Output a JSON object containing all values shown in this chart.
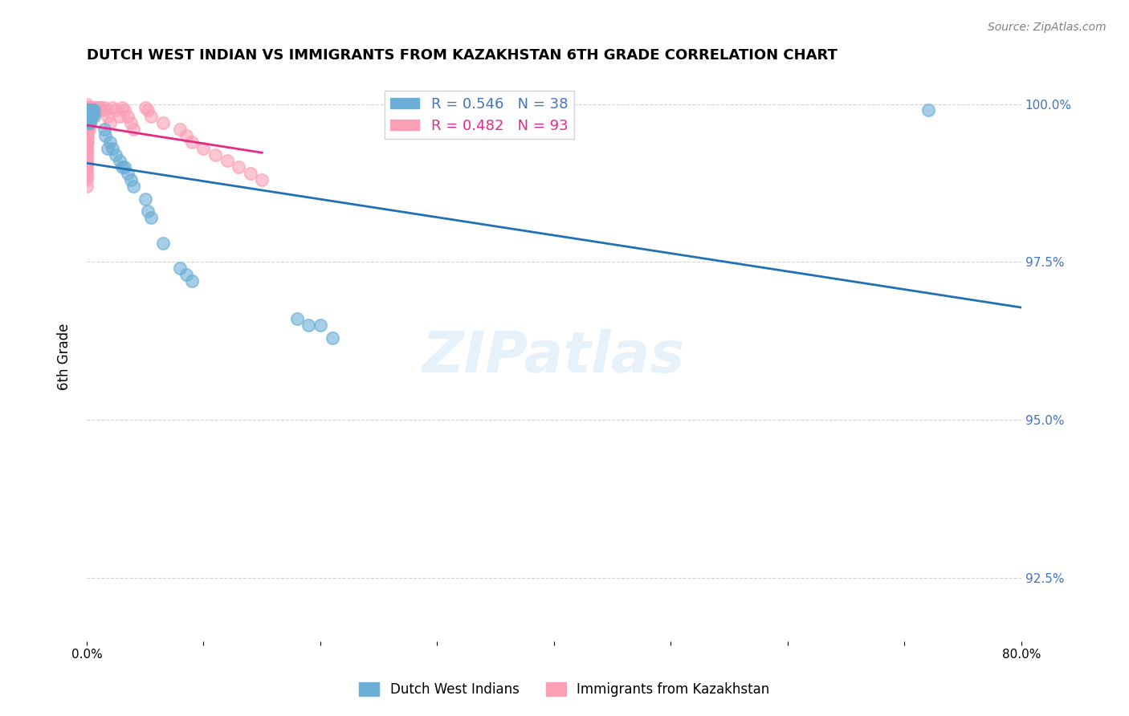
{
  "title": "DUTCH WEST INDIAN VS IMMIGRANTS FROM KAZAKHSTAN 6TH GRADE CORRELATION CHART",
  "source": "Source: ZipAtlas.com",
  "xlabel": "",
  "ylabel": "6th Grade",
  "xlim": [
    0.0,
    0.8
  ],
  "ylim": [
    0.915,
    1.005
  ],
  "yticks": [
    0.925,
    0.95,
    0.975,
    1.0
  ],
  "ytick_labels": [
    "92.5%",
    "95.0%",
    "97.5%",
    "100.0%"
  ],
  "xticks": [
    0.0,
    0.1,
    0.2,
    0.3,
    0.4,
    0.5,
    0.6,
    0.7,
    0.8
  ],
  "xtick_labels": [
    "0.0%",
    "",
    "",
    "",
    "",
    "",
    "",
    "",
    "80.0%"
  ],
  "blue_R": 0.546,
  "blue_N": 38,
  "pink_R": 0.482,
  "pink_N": 93,
  "blue_color": "#6BAED6",
  "pink_color": "#FA9FB5",
  "trendline_blue_color": "#2171B5",
  "trendline_pink_color": "#E7298A",
  "watermark": "ZIPatlas",
  "blue_scatter_x": [
    0.0,
    0.0,
    0.001,
    0.001,
    0.002,
    0.002,
    0.003,
    0.003,
    0.003,
    0.004,
    0.004,
    0.005,
    0.006,
    0.006,
    0.015,
    0.016,
    0.018,
    0.02,
    0.022,
    0.025,
    0.028,
    0.03,
    0.032,
    0.035,
    0.038,
    0.04,
    0.05,
    0.052,
    0.055,
    0.065,
    0.08,
    0.085,
    0.09,
    0.18,
    0.19,
    0.2,
    0.21,
    0.72
  ],
  "blue_scatter_y": [
    0.999,
    0.998,
    0.999,
    0.997,
    0.998,
    0.997,
    0.999,
    0.998,
    0.997,
    0.999,
    0.998,
    0.999,
    0.999,
    0.998,
    0.996,
    0.995,
    0.993,
    0.994,
    0.993,
    0.992,
    0.991,
    0.99,
    0.99,
    0.989,
    0.988,
    0.987,
    0.985,
    0.983,
    0.982,
    0.978,
    0.974,
    0.973,
    0.972,
    0.966,
    0.965,
    0.965,
    0.963,
    0.999
  ],
  "pink_scatter_x": [
    0.0,
    0.0,
    0.0,
    0.0,
    0.0,
    0.0,
    0.0,
    0.0,
    0.0,
    0.0,
    0.0,
    0.0,
    0.0,
    0.0,
    0.0,
    0.0,
    0.0,
    0.0,
    0.0,
    0.0,
    0.0,
    0.0,
    0.0,
    0.0,
    0.0,
    0.0,
    0.0,
    0.0,
    0.0,
    0.0,
    0.0,
    0.0,
    0.0,
    0.0,
    0.0,
    0.0,
    0.001,
    0.001,
    0.001,
    0.001,
    0.001,
    0.001,
    0.001,
    0.002,
    0.002,
    0.002,
    0.002,
    0.002,
    0.003,
    0.003,
    0.003,
    0.003,
    0.004,
    0.004,
    0.004,
    0.005,
    0.005,
    0.006,
    0.006,
    0.007,
    0.007,
    0.008,
    0.008,
    0.01,
    0.01,
    0.011,
    0.011,
    0.012,
    0.015,
    0.016,
    0.018,
    0.02,
    0.022,
    0.025,
    0.028,
    0.03,
    0.032,
    0.035,
    0.038,
    0.04,
    0.05,
    0.052,
    0.055,
    0.065,
    0.08,
    0.085,
    0.09,
    0.1,
    0.11,
    0.12,
    0.13,
    0.14,
    0.15
  ],
  "pink_scatter_y": [
    1.0,
    0.9995,
    0.999,
    0.9988,
    0.9985,
    0.998,
    0.9978,
    0.9975,
    0.997,
    0.9968,
    0.9965,
    0.9962,
    0.996,
    0.9958,
    0.9955,
    0.9952,
    0.995,
    0.9948,
    0.9945,
    0.994,
    0.9938,
    0.9935,
    0.993,
    0.9928,
    0.9925,
    0.992,
    0.9918,
    0.9912,
    0.9908,
    0.9905,
    0.99,
    0.9895,
    0.989,
    0.9885,
    0.988,
    0.987,
    0.9995,
    0.999,
    0.998,
    0.997,
    0.996,
    0.995,
    0.994,
    0.9995,
    0.999,
    0.998,
    0.997,
    0.996,
    0.9995,
    0.999,
    0.998,
    0.997,
    0.9995,
    0.999,
    0.998,
    0.9995,
    0.999,
    0.9995,
    0.999,
    0.9995,
    0.999,
    0.9995,
    0.999,
    0.9995,
    0.999,
    0.9995,
    0.999,
    0.9995,
    0.9995,
    0.999,
    0.998,
    0.997,
    0.9995,
    0.999,
    0.998,
    0.9995,
    0.999,
    0.998,
    0.997,
    0.996,
    0.9995,
    0.999,
    0.998,
    0.997,
    0.996,
    0.995,
    0.994,
    0.993,
    0.992,
    0.991,
    0.99,
    0.989,
    0.988
  ]
}
